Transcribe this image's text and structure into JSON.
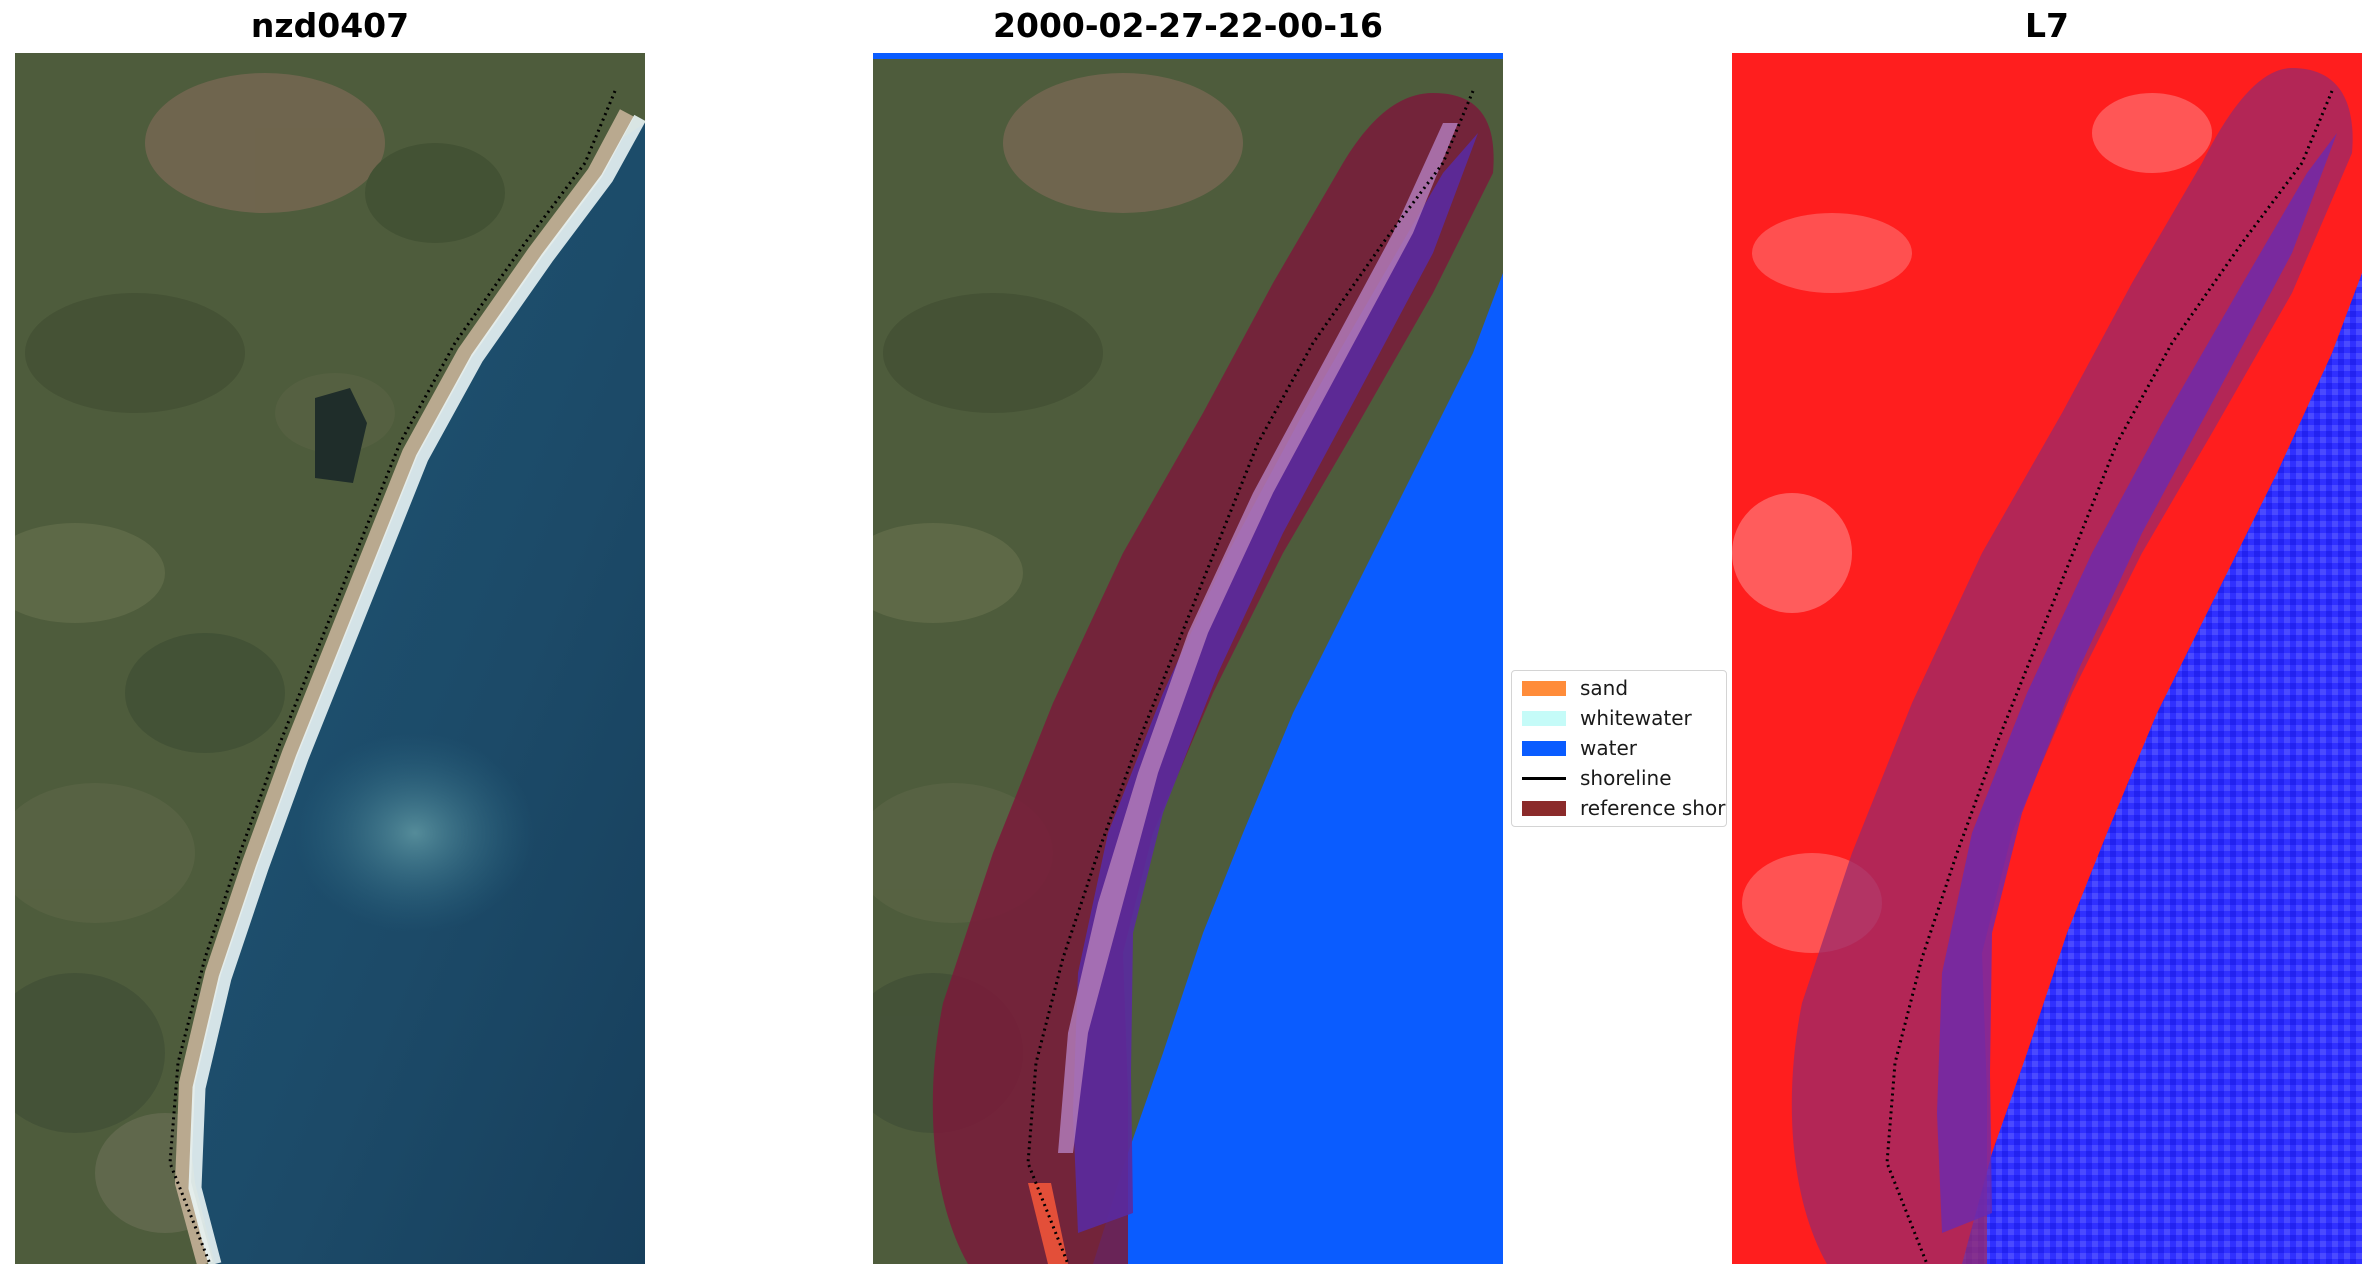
{
  "figure": {
    "panels": [
      {
        "title": "nzd0407",
        "kind": "rgb-image"
      },
      {
        "title": "2000-02-27-22-00-16",
        "kind": "classified-image"
      },
      {
        "title": "L7",
        "kind": "index-image"
      }
    ]
  },
  "legend": {
    "items": [
      {
        "label": "sand",
        "type": "patch",
        "color": "#ff8c3a"
      },
      {
        "label": "whitewater",
        "type": "patch",
        "color": "#c5fbf8"
      },
      {
        "label": "water",
        "type": "patch",
        "color": "#0a5cff"
      },
      {
        "label": "shoreline",
        "type": "line",
        "color": "#000000"
      },
      {
        "label": "reference shoreline buffer",
        "type": "patch",
        "color": "#8b2b2b"
      }
    ]
  },
  "colors": {
    "land": "#4f5e3c",
    "ocean": "#1e4f6e",
    "surf": "#e8f4f6",
    "classified_water": "#0a5cff",
    "buffer": "#7a1a3a",
    "index_land": "#ff1a1a",
    "index_water": "#2d2dff"
  }
}
